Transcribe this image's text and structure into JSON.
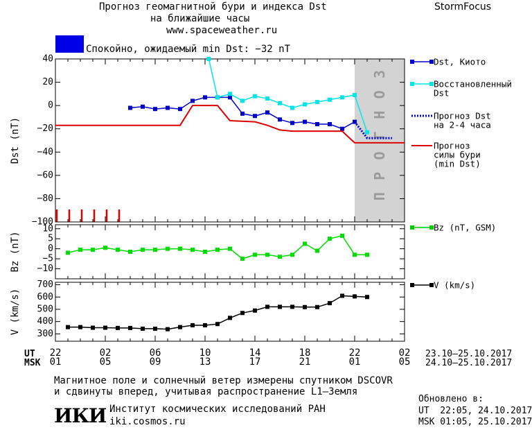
{
  "header": {
    "title_line1": "Прогноз геомагнитной бури и индекса Dst",
    "title_line2": "на ближайшие часы",
    "url": "www.spaceweather.ru",
    "brand": "StormFocus"
  },
  "status": {
    "text": "Спокойно, ожидаемый min Dst: −32 nT",
    "color": "#0000e6"
  },
  "forecast_label": "ПРОГНОЗ",
  "time_axis": {
    "ut_label": "UT",
    "msk_label": "MSK",
    "ut_ticks": [
      "22",
      "02",
      "06",
      "10",
      "14",
      "18",
      "22",
      "02"
    ],
    "msk_ticks": [
      "01",
      "05",
      "09",
      "13",
      "17",
      "21",
      "01",
      "05"
    ],
    "ut_range": "23.10–25.10.2017",
    "msk_range": "24.10–25.10.2017"
  },
  "footer": {
    "line1": "Магнитное поле и солнечный ветер измерены спутником DSCOVR",
    "line2": "и сдвинуты вперед, учитывая распространение L1–Земля",
    "logo": "ИКИ",
    "institute": "Институт космических исследований РАН",
    "site": "iki.cosmos.ru",
    "updated_label": "Обновлено в:",
    "updated_ut": "UT  22:05, 24.10.2017",
    "updated_msk": "MSK 01:05, 25.10.2017"
  },
  "chart_data": [
    {
      "type": "line",
      "ylabel": "Dst (nT)",
      "ylim": [
        -100,
        40
      ],
      "yticks": [
        40,
        20,
        0,
        -20,
        -40,
        -60,
        -80,
        -100
      ],
      "x_unit": "hours from 22 UT, 23.10.2017",
      "xlim": [
        0,
        28
      ],
      "forecast_region": [
        24,
        28
      ],
      "storm_markers_x": [
        0,
        1,
        2,
        3,
        4,
        5
      ],
      "legend": [
        {
          "label_lines": [
            "Dst, Киото"
          ],
          "color": "#0000cc",
          "style": "solid-square"
        },
        {
          "label_lines": [
            "Восстановленный",
            "Dst"
          ],
          "color": "#00e6e6",
          "style": "solid-square"
        },
        {
          "label_lines": [
            "Прогноз Dst",
            "на 2-4 часа"
          ],
          "color": "#0000cc",
          "style": "dotted"
        },
        {
          "label_lines": [
            "Прогноз",
            "силы бури",
            "(min Dst)"
          ],
          "color": "#dd0000",
          "style": "solid"
        }
      ],
      "series": [
        {
          "name": "Dst, Киото",
          "color": "#0000cc",
          "style": "solid-square",
          "x": [
            6,
            7,
            8,
            9,
            10,
            11,
            12,
            13,
            14,
            15,
            16,
            17,
            18,
            19,
            20,
            21,
            22,
            23,
            24
          ],
          "values": [
            -2,
            -1,
            -3,
            -2,
            -3,
            4,
            7,
            7,
            7,
            -7,
            -9,
            -6,
            -12,
            -15,
            -14,
            -16,
            -16,
            -20,
            -14
          ]
        },
        {
          "name": "Восстановленный Dst",
          "color": "#00e6e6",
          "style": "solid-square",
          "x": [
            12.3,
            13,
            14,
            15,
            16,
            17,
            18,
            19,
            20,
            21,
            22,
            23,
            24,
            25
          ],
          "values": [
            40,
            7,
            10,
            4,
            8,
            6,
            2,
            -2,
            1,
            3,
            5,
            7,
            9,
            -23
          ]
        },
        {
          "name": "Прогноз Dst на 2-4 часа",
          "color": "#0000cc",
          "style": "dotted",
          "x": [
            24,
            25,
            26,
            27
          ],
          "values": [
            -14,
            -28,
            -28,
            -28
          ]
        },
        {
          "name": "Прогноз силы бури (min Dst)",
          "color": "#dd0000",
          "style": "solid",
          "step": true,
          "x": [
            0,
            10,
            11,
            13,
            14,
            16,
            17,
            18,
            19,
            20,
            22,
            23,
            24,
            25,
            28
          ],
          "values": [
            -17,
            -17,
            0,
            0,
            -13,
            -14,
            -17,
            -21,
            -22,
            -22,
            -22,
            -22,
            -32,
            -32,
            -32
          ]
        }
      ]
    },
    {
      "type": "line",
      "ylabel": "Bz (nT)",
      "ylim": [
        -15,
        12
      ],
      "yticks": [
        10,
        5,
        0,
        -5,
        -10
      ],
      "x_unit": "hours from 22 UT, 23.10.2017",
      "xlim": [
        0,
        28
      ],
      "legend": [
        {
          "label_lines": [
            "Bz (nT, GSM)"
          ],
          "color": "#00cc00",
          "style": "solid-square"
        }
      ],
      "series": [
        {
          "name": "Bz (nT, GSM)",
          "color": "#00dd00",
          "style": "solid-square",
          "x": [
            1,
            2,
            3,
            4,
            5,
            6,
            7,
            8,
            9,
            10,
            11,
            12,
            13,
            14,
            15,
            16,
            17,
            18,
            19,
            20,
            21,
            22,
            23,
            24,
            25
          ],
          "values": [
            -2,
            -0.5,
            -0.5,
            0.5,
            -0.5,
            -1.5,
            -0.5,
            -0.5,
            0,
            0,
            -0.5,
            -1.5,
            -0.5,
            0,
            -5,
            -3,
            -3,
            -4,
            -3,
            2.5,
            -1,
            5,
            6.5,
            -3,
            -3
          ]
        }
      ]
    },
    {
      "type": "line",
      "ylabel": "V (km/s)",
      "ylim": [
        240,
        720
      ],
      "yticks": [
        700,
        600,
        500,
        400,
        300
      ],
      "x_unit": "hours from 22 UT, 23.10.2017",
      "xlim": [
        0,
        28
      ],
      "legend": [
        {
          "label_lines": [
            "V (km/s)"
          ],
          "color": "#000000",
          "style": "solid-square"
        }
      ],
      "series": [
        {
          "name": "V (km/s)",
          "color": "#000000",
          "style": "solid-square",
          "x": [
            1,
            2,
            3,
            4,
            5,
            6,
            7,
            8,
            9,
            10,
            11,
            12,
            13,
            14,
            15,
            16,
            17,
            18,
            19,
            20,
            21,
            22,
            23,
            24,
            25
          ],
          "values": [
            355,
            355,
            350,
            350,
            348,
            348,
            342,
            342,
            338,
            355,
            370,
            370,
            380,
            430,
            470,
            490,
            520,
            520,
            520,
            518,
            518,
            550,
            610,
            605,
            600
          ]
        }
      ]
    }
  ]
}
